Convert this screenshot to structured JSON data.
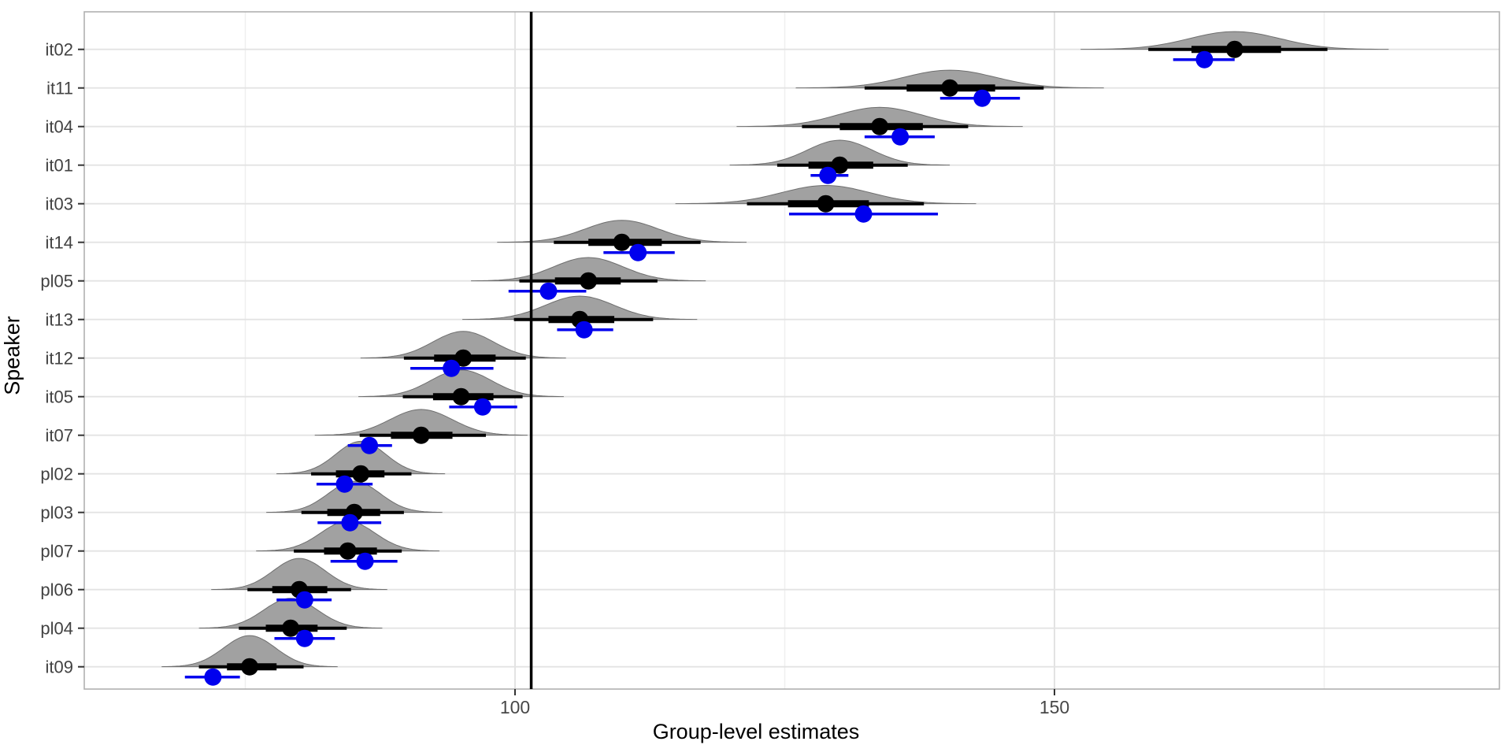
{
  "chart_data": {
    "type": "scatter",
    "subtype": "half-eye density with point intervals (forest / ridgeline plot)",
    "title": "",
    "xlabel": "Group-level estimates",
    "ylabel": "Speaker",
    "x_axis": {
      "ticks": [
        {
          "value": 100,
          "label": "100"
        },
        {
          "value": 150,
          "label": "150"
        }
      ],
      "minor_gridlines": [
        75,
        125,
        175
      ],
      "range": [
        60,
        191.5
      ],
      "grid": true
    },
    "reference_line": {
      "value": 101.5
    },
    "legend": "none",
    "categories_top_to_bottom": [
      "it02",
      "it11",
      "it04",
      "it01",
      "it03",
      "it14",
      "pl05",
      "it13",
      "it12",
      "it05",
      "it07",
      "pl02",
      "pl03",
      "pl07",
      "pl06",
      "pl04",
      "it09"
    ],
    "rows": [
      {
        "speaker": "it02",
        "median": 166.7,
        "ci66": [
          162.7,
          171.0
        ],
        "ci95": [
          158.7,
          175.3
        ],
        "sd": 4.2,
        "observed_mean": 163.9,
        "observed_ci": [
          161.0,
          166.7
        ]
      },
      {
        "speaker": "it11",
        "median": 140.3,
        "ci66": [
          136.3,
          144.5
        ],
        "ci95": [
          132.4,
          149.0
        ],
        "sd": 4.2,
        "observed_mean": 143.3,
        "observed_ci": [
          139.4,
          146.8
        ]
      },
      {
        "speaker": "it04",
        "median": 133.8,
        "ci66": [
          130.1,
          137.8
        ],
        "ci95": [
          126.6,
          142.0
        ],
        "sd": 3.9,
        "observed_mean": 135.7,
        "observed_ci": [
          132.4,
          138.9
        ]
      },
      {
        "speaker": "it01",
        "median": 130.1,
        "ci66": [
          127.2,
          133.2
        ],
        "ci95": [
          124.3,
          136.4
        ],
        "sd": 3.0,
        "observed_mean": 129.0,
        "observed_ci": [
          127.4,
          130.9
        ]
      },
      {
        "speaker": "it03",
        "median": 128.8,
        "ci66": [
          125.3,
          132.8
        ],
        "ci95": [
          121.5,
          137.9
        ],
        "sd": 4.1,
        "observed_mean": 132.3,
        "observed_ci": [
          125.4,
          139.2
        ]
      },
      {
        "speaker": "it14",
        "median": 109.9,
        "ci66": [
          106.8,
          113.6
        ],
        "ci95": [
          103.6,
          117.2
        ],
        "sd": 3.4,
        "observed_mean": 111.4,
        "observed_ci": [
          108.2,
          114.8
        ]
      },
      {
        "speaker": "pl05",
        "median": 106.8,
        "ci66": [
          103.7,
          109.8
        ],
        "ci95": [
          100.4,
          113.2
        ],
        "sd": 3.2,
        "observed_mean": 103.1,
        "observed_ci": [
          99.4,
          106.6
        ]
      },
      {
        "speaker": "it13",
        "median": 106.0,
        "ci66": [
          103.1,
          109.2
        ],
        "ci95": [
          99.9,
          112.8
        ],
        "sd": 3.2,
        "observed_mean": 106.4,
        "observed_ci": [
          103.9,
          109.1
        ]
      },
      {
        "speaker": "it12",
        "median": 95.2,
        "ci66": [
          92.5,
          98.2
        ],
        "ci95": [
          89.7,
          101.0
        ],
        "sd": 2.8,
        "observed_mean": 94.1,
        "observed_ci": [
          90.3,
          98.0
        ]
      },
      {
        "speaker": "it05",
        "median": 95.0,
        "ci66": [
          92.4,
          98.0
        ],
        "ci95": [
          89.6,
          100.7
        ],
        "sd": 2.8,
        "observed_mean": 97.0,
        "observed_ci": [
          93.9,
          100.2
        ]
      },
      {
        "speaker": "it07",
        "median": 91.3,
        "ci66": [
          88.5,
          94.2
        ],
        "ci95": [
          85.6,
          97.3
        ],
        "sd": 2.9,
        "observed_mean": 86.5,
        "observed_ci": [
          84.5,
          88.6
        ]
      },
      {
        "speaker": "pl02",
        "median": 85.7,
        "ci66": [
          83.4,
          87.9
        ],
        "ci95": [
          81.1,
          90.4
        ],
        "sd": 2.3,
        "observed_mean": 84.2,
        "observed_ci": [
          81.6,
          86.8
        ]
      },
      {
        "speaker": "pl03",
        "median": 85.1,
        "ci66": [
          82.6,
          87.5
        ],
        "ci95": [
          80.2,
          89.7
        ],
        "sd": 2.4,
        "observed_mean": 84.7,
        "observed_ci": [
          81.7,
          87.6
        ]
      },
      {
        "speaker": "pl07",
        "median": 84.5,
        "ci66": [
          82.3,
          87.2
        ],
        "ci95": [
          79.5,
          89.5
        ],
        "sd": 2.5,
        "observed_mean": 86.1,
        "observed_ci": [
          82.9,
          89.1
        ]
      },
      {
        "speaker": "pl06",
        "median": 80.0,
        "ci66": [
          77.5,
          82.6
        ],
        "ci95": [
          75.2,
          84.8
        ],
        "sd": 2.4,
        "observed_mean": 80.5,
        "observed_ci": [
          77.9,
          83.0
        ]
      },
      {
        "speaker": "pl04",
        "median": 79.2,
        "ci66": [
          76.9,
          81.7
        ],
        "ci95": [
          74.4,
          84.4
        ],
        "sd": 2.5,
        "observed_mean": 80.5,
        "observed_ci": [
          77.7,
          83.3
        ]
      },
      {
        "speaker": "it09",
        "median": 75.4,
        "ci66": [
          73.3,
          77.9
        ],
        "ci95": [
          70.7,
          80.4
        ],
        "sd": 2.4,
        "observed_mean": 72.0,
        "observed_ci": [
          69.4,
          74.5
        ]
      }
    ]
  },
  "style": {
    "slab_fill": "#a1a1a1",
    "slab_stroke": "#6f6f6f",
    "interval_color": "#000000",
    "observed_color": "#0000ee",
    "reference_line_color": "#000000",
    "grid_major_color": "#e3e3e3",
    "grid_minor_color": "#efefef",
    "panel_border_color": "#b0b0b0",
    "tick_color": "#333333",
    "tick_label_color": "#474747",
    "category_label_color": "#424242"
  }
}
